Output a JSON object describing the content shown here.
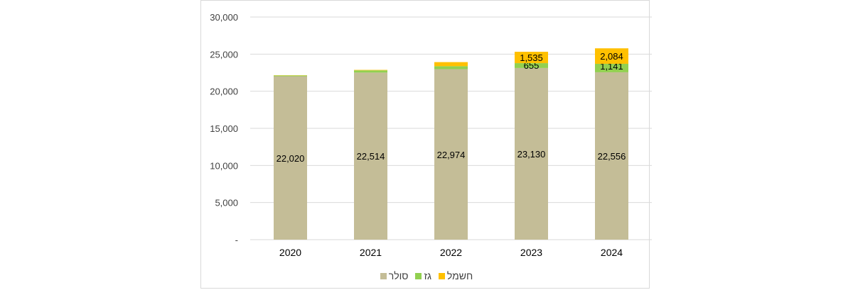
{
  "chart_data": {
    "type": "bar",
    "stacked": true,
    "title": "",
    "xlabel": "",
    "ylabel": "",
    "categories": [
      "2020",
      "2021",
      "2022",
      "2023",
      "2024"
    ],
    "ylim": [
      0,
      30000
    ],
    "yticks": [
      0,
      5000,
      10000,
      15000,
      20000,
      25000,
      30000
    ],
    "ytick_labels": [
      "-",
      "5,000",
      "10,000",
      "15,000",
      "20,000",
      "25,000",
      "30,000"
    ],
    "grid": true,
    "legend_position": "bottom",
    "series": [
      {
        "name": "סולר",
        "color": "#c4bd97",
        "values": [
          22020,
          22514,
          22974,
          23130,
          22556
        ],
        "labels": [
          "22,020",
          "22,514",
          "22,974",
          "23,130",
          "22,556"
        ]
      },
      {
        "name": "גז",
        "color": "#92d050",
        "values": [
          100,
          300,
          400,
          655,
          1141
        ],
        "labels": [
          "",
          "",
          "",
          "655",
          "1,141"
        ]
      },
      {
        "name": "חשמל",
        "color": "#ffc000",
        "values": [
          30,
          60,
          550,
          1535,
          2084
        ],
        "labels": [
          "",
          "",
          "",
          "1,535",
          "2,084"
        ]
      }
    ]
  }
}
